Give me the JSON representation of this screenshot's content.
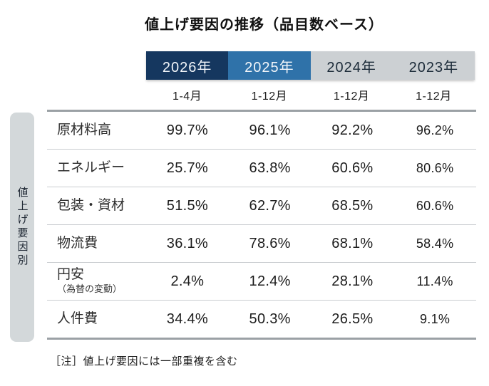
{
  "title": "値上げ要因の推移（品目数ベース）",
  "side_label": "値上げ要因別",
  "footnote": "［注］値上げ要因には一部重複を含む",
  "colors": {
    "year_2026_bg": "#15375f",
    "year_2025_bg": "#2f72a9",
    "year_past_bg": "#ccd0d3",
    "header_text_light": "#f2f6fa",
    "header_text_dark": "#1c2b39",
    "side_badge_bg": "#d3d8da",
    "table_border": "#9ba1a5",
    "row_divider": "#c9cdd0"
  },
  "header": {
    "years": [
      "2026年",
      "2025年",
      "2024年",
      "2023年"
    ],
    "periods": [
      "1-4月",
      "1-12月",
      "1-12月",
      "1-12月"
    ]
  },
  "table": {
    "rows": [
      {
        "label": "原材料高",
        "values": [
          "99.7%",
          "96.1%",
          "92.2%",
          "96.2%"
        ]
      },
      {
        "label": "エネルギー",
        "values": [
          "25.7%",
          "63.8%",
          "60.6%",
          "80.6%"
        ]
      },
      {
        "label": "包装・資材",
        "values": [
          "51.5%",
          "62.7%",
          "68.5%",
          "60.6%"
        ]
      },
      {
        "label": "物流費",
        "values": [
          "36.1%",
          "78.6%",
          "68.1%",
          "58.4%"
        ]
      },
      {
        "label": "円安",
        "label_sub": "（為替の変動）",
        "values": [
          "2.4%",
          "12.4%",
          "28.1%",
          "11.4%"
        ]
      },
      {
        "label": "人件費",
        "values": [
          "34.4%",
          "50.3%",
          "26.5%",
          "9.1%"
        ]
      }
    ]
  },
  "chart_data": {
    "type": "table",
    "title": "値上げ要因の推移（品目数ベース）",
    "row_group_label": "値上げ要因別",
    "columns": [
      {
        "year": "2026年",
        "period": "1-4月"
      },
      {
        "year": "2025年",
        "period": "1-12月"
      },
      {
        "year": "2024年",
        "period": "1-12月"
      },
      {
        "year": "2023年",
        "period": "1-12月"
      }
    ],
    "series": [
      {
        "name": "原材料高",
        "values": [
          99.7,
          96.1,
          92.2,
          96.2
        ]
      },
      {
        "name": "エネルギー",
        "values": [
          25.7,
          63.8,
          60.6,
          80.6
        ]
      },
      {
        "name": "包装・資材",
        "values": [
          51.5,
          62.7,
          68.5,
          60.6
        ]
      },
      {
        "name": "物流費",
        "values": [
          36.1,
          78.6,
          68.1,
          58.4
        ]
      },
      {
        "name": "円安（為替の変動）",
        "values": [
          2.4,
          12.4,
          28.1,
          11.4
        ]
      },
      {
        "name": "人件費",
        "values": [
          34.4,
          50.3,
          26.5,
          9.1
        ]
      }
    ],
    "unit": "%",
    "note": "［注］値上げ要因には一部重複を含む"
  }
}
